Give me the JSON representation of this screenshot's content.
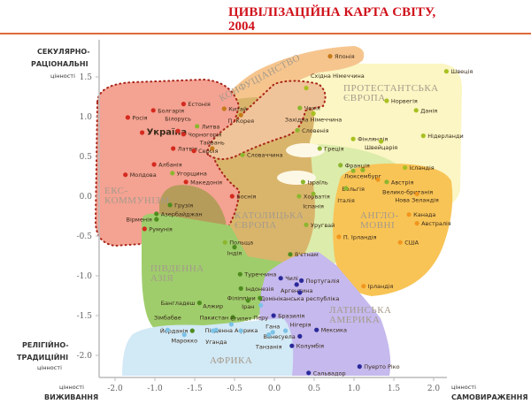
{
  "chart_data": {
    "type": "scatter",
    "title_line1": "ЦИВІЛІЗАЦІЙНА КАРТА СВІТУ,",
    "title_line2": "2004",
    "y_axis": {
      "top_label": [
        "СЕКУЛЯРНО-",
        "РАЦІОНАЛЬНІ",
        "цінності"
      ],
      "bottom_label": [
        "РЕЛІГІЙНО-",
        "ТРАДИЦІЙНІ",
        "цінності"
      ],
      "ticks": [
        "1.5",
        "1.0",
        "0.5",
        "0.0",
        "-0.5",
        "-1.0",
        "-1.5",
        "-2.0"
      ],
      "ylim": [
        -2.3,
        1.9
      ]
    },
    "x_axis": {
      "left_label": [
        "цінності",
        "ВИЖИВАННЯ"
      ],
      "right_label": [
        "цінності",
        "САМОВИРАЖЕННЯ"
      ],
      "ticks": [
        "-2.0",
        "-1.0",
        "-1.5",
        "-0.5",
        "0.0",
        "0.5",
        "1.0",
        "1.5",
        "2.0"
      ],
      "xlim": [
        -2.0,
        2.2
      ]
    },
    "colors": {
      "ex_communist": "#d42a1e",
      "catholic": "#8db62e",
      "protestant": "#a8c020",
      "confucian": "#c77a1a",
      "english": "#f0961e",
      "south_asia": "#4e8c1e",
      "latin": "#2b2a9a",
      "africa": "#7cc2e6"
    },
    "regions": [
      "ЕКС-",
      "КОММУНІЗМ",
      "КОНФУЦІАНСТВО",
      "ПРОТЕСТАНТСЬКА",
      "ЄВРОПА",
      "КАТОЛИЦЬКА",
      "ЄВРОПА",
      "АНГЛО-",
      "МОВНІ",
      "ПІВДЕННА",
      "АЗІЯ",
      "ЛАТИНСЬКА",
      "АМЕРИКА",
      "АФРИКА"
    ],
    "points": [
      {
        "name": "Росія",
        "x": -1.84,
        "y": 0.99,
        "group": "ex_communist"
      },
      {
        "name": "Болгарія",
        "x": -1.52,
        "y": 1.08,
        "group": "ex_communist"
      },
      {
        "name": "Естонія",
        "x": -1.14,
        "y": 1.16,
        "group": "ex_communist"
      },
      {
        "name": "Україна",
        "x": -1.66,
        "y": 0.8,
        "group": "ex_communist"
      },
      {
        "name": "Білорусь",
        "x": -1.21,
        "y": 0.82,
        "group": "ex_communist"
      },
      {
        "name": "Чорногорія",
        "x": -1.14,
        "y": 0.78,
        "group": "ex_communist"
      },
      {
        "name": "Литва",
        "x": -0.97,
        "y": 0.88,
        "group": "catholic"
      },
      {
        "name": "Латвія",
        "x": -1.27,
        "y": 0.6,
        "group": "ex_communist"
      },
      {
        "name": "Сербія",
        "x": -1.01,
        "y": 0.57,
        "group": "ex_communist"
      },
      {
        "name": "Албанія",
        "x": -1.51,
        "y": 0.4,
        "group": "ex_communist"
      },
      {
        "name": "Молдова",
        "x": -1.87,
        "y": 0.27,
        "group": "ex_communist"
      },
      {
        "name": "Угорщина",
        "x": -1.28,
        "y": 0.29,
        "group": "catholic"
      },
      {
        "name": "Македонія",
        "x": -1.11,
        "y": 0.18,
        "group": "ex_communist"
      },
      {
        "name": "Боснія",
        "x": -0.53,
        "y": 0.0,
        "group": "ex_communist"
      },
      {
        "name": "Китай",
        "x": -0.63,
        "y": 1.1,
        "group": "confucian"
      },
      {
        "name": "П. Корея",
        "x": -0.42,
        "y": 1.02,
        "group": "confucian"
      },
      {
        "name": "Тайвань",
        "x": -0.78,
        "y": 0.6,
        "group": "confucian"
      },
      {
        "name": "Словаччина",
        "x": -0.4,
        "y": 0.52,
        "group": "catholic"
      },
      {
        "name": "Словенія",
        "x": 0.29,
        "y": 0.83,
        "group": "catholic"
      },
      {
        "name": "Чехія",
        "x": 0.32,
        "y": 1.11,
        "group": "catholic"
      },
      {
        "name": "Східна Німеччина",
        "x": 0.4,
        "y": 1.36,
        "group": "protestant"
      },
      {
        "name": "Хорватія",
        "x": 0.31,
        "y": 0.0,
        "group": "catholic"
      },
      {
        "name": "Грузія",
        "x": -1.31,
        "y": -0.11,
        "group": "south_asia"
      },
      {
        "name": "Азербайджан",
        "x": -1.48,
        "y": -0.22,
        "group": "south_asia"
      },
      {
        "name": "Вірменія",
        "x": -1.48,
        "y": -0.29,
        "group": "south_asia"
      },
      {
        "name": "Румунія",
        "x": -1.63,
        "y": -0.41,
        "group": "ex_communist"
      },
      {
        "name": "Японія",
        "x": 0.7,
        "y": 1.76,
        "group": "confucian"
      },
      {
        "name": "Швеція",
        "x": 2.16,
        "y": 1.57,
        "group": "protestant"
      },
      {
        "name": "Норвегія",
        "x": 1.41,
        "y": 1.2,
        "group": "protestant"
      },
      {
        "name": "Данія",
        "x": 1.78,
        "y": 1.08,
        "group": "protestant"
      },
      {
        "name": "Нідерланди",
        "x": 1.87,
        "y": 0.76,
        "group": "protestant"
      },
      {
        "name": "Західна Німеччина",
        "x": 0.49,
        "y": 1.04,
        "group": "protestant"
      },
      {
        "name": "Фінляндія",
        "x": 0.99,
        "y": 0.72,
        "group": "protestant"
      },
      {
        "name": "Швейцарія",
        "x": 1.34,
        "y": 0.69,
        "group": "protestant"
      },
      {
        "name": "Греція",
        "x": 0.57,
        "y": 0.6,
        "group": "catholic"
      },
      {
        "name": "Франція",
        "x": 0.83,
        "y": 0.39,
        "group": "catholic"
      },
      {
        "name": "Люксембург",
        "x": 1.11,
        "y": 0.33,
        "group": "catholic"
      },
      {
        "name": "Бельгія",
        "x": 0.99,
        "y": 0.32,
        "group": "catholic"
      },
      {
        "name": "Ісландія",
        "x": 1.64,
        "y": 0.36,
        "group": "protestant"
      },
      {
        "name": "Австрія",
        "x": 1.41,
        "y": 0.18,
        "group": "catholic"
      },
      {
        "name": "Велико-британія",
        "x": 1.3,
        "y": 0.21,
        "group": "english"
      },
      {
        "name": "Ізраїль",
        "x": 0.36,
        "y": 0.18,
        "group": "catholic"
      },
      {
        "name": "Італія",
        "x": 0.9,
        "y": 0.1,
        "group": "catholic"
      },
      {
        "name": "Іспанія",
        "x": 0.49,
        "y": 0.03,
        "group": "catholic"
      },
      {
        "name": "Нова Зеландія",
        "x": 1.79,
        "y": 0.03,
        "group": "english"
      },
      {
        "name": "Канада",
        "x": 1.69,
        "y": -0.23,
        "group": "english"
      },
      {
        "name": "Австралія",
        "x": 1.79,
        "y": -0.34,
        "group": "english"
      },
      {
        "name": "П. Ірландія",
        "x": 0.81,
        "y": -0.51,
        "group": "english"
      },
      {
        "name": "США",
        "x": 1.58,
        "y": -0.58,
        "group": "english"
      },
      {
        "name": "Уругвай",
        "x": 0.4,
        "y": -0.36,
        "group": "catholic"
      },
      {
        "name": "Ірландія",
        "x": 1.12,
        "y": -1.13,
        "group": "english"
      },
      {
        "name": "Польща",
        "x": -0.62,
        "y": -0.58,
        "group": "catholic"
      },
      {
        "name": "Індія",
        "x": -0.5,
        "y": -0.64,
        "group": "south_asia"
      },
      {
        "name": "В'єтнам",
        "x": 0.2,
        "y": -0.73,
        "group": "south_asia"
      },
      {
        "name": "Португалія",
        "x": 0.34,
        "y": -1.06,
        "group": "latin"
      },
      {
        "name": "Чилі",
        "x": 0.08,
        "y": -1.03,
        "group": "latin"
      },
      {
        "name": "Аргентина",
        "x": 0.28,
        "y": -1.11,
        "group": "latin"
      },
      {
        "name": "Домініканська республіка",
        "x": 0.32,
        "y": -1.21,
        "group": "latin"
      },
      {
        "name": "Бразилія",
        "x": -0.01,
        "y": -1.5,
        "group": "latin"
      },
      {
        "name": "Мексика",
        "x": 0.53,
        "y": -1.68,
        "group": "latin"
      },
      {
        "name": "Венесуела",
        "x": 0.32,
        "y": -1.76,
        "group": "latin"
      },
      {
        "name": "Колумбія",
        "x": 0.22,
        "y": -1.88,
        "group": "latin"
      },
      {
        "name": "Пуерто Ріко",
        "x": 1.07,
        "y": -2.14,
        "group": "latin"
      },
      {
        "name": "Сальвадор",
        "x": 0.43,
        "y": -2.22,
        "group": "latin"
      },
      {
        "name": "Туреччина",
        "x": -0.43,
        "y": -0.98,
        "group": "south_asia"
      },
      {
        "name": "Індонезія",
        "x": -0.42,
        "y": -1.16,
        "group": "south_asia"
      },
      {
        "name": "Філіппіни",
        "x": -0.18,
        "y": -1.28,
        "group": "south_asia"
      },
      {
        "name": "Іран",
        "x": -0.33,
        "y": -1.31,
        "group": "south_asia"
      },
      {
        "name": "Бангладеш",
        "x": -0.94,
        "y": -1.34,
        "group": "south_asia"
      },
      {
        "name": "Перу",
        "x": -0.17,
        "y": -1.37,
        "group": "africa"
      },
      {
        "name": "Пакистан",
        "x": -0.52,
        "y": -1.52,
        "group": "south_asia"
      },
      {
        "name": "Південна Африка",
        "x": -0.54,
        "y": -1.61,
        "group": "africa"
      },
      {
        "name": "Йорданія",
        "x": -1.03,
        "y": -1.69,
        "group": "south_asia"
      },
      {
        "name": "Зімбабве",
        "x": -1.34,
        "y": -1.68,
        "group": "africa"
      },
      {
        "name": "Марокко",
        "x": -1.13,
        "y": -1.74,
        "group": "africa"
      },
      {
        "name": "Уганда",
        "x": -0.73,
        "y": -1.68,
        "group": "africa"
      },
      {
        "name": "Алжир",
        "x": -0.77,
        "y": -1.69,
        "group": "africa"
      },
      {
        "name": "Єгипет",
        "x": -0.42,
        "y": -1.69,
        "group": "africa"
      },
      {
        "name": "Гана",
        "x": -0.02,
        "y": -1.71,
        "group": "africa"
      },
      {
        "name": "Танзанія",
        "x": -0.07,
        "y": -1.74,
        "group": "africa"
      },
      {
        "name": "Нігерія",
        "x": 0.14,
        "y": -1.69,
        "group": "africa"
      }
    ]
  }
}
